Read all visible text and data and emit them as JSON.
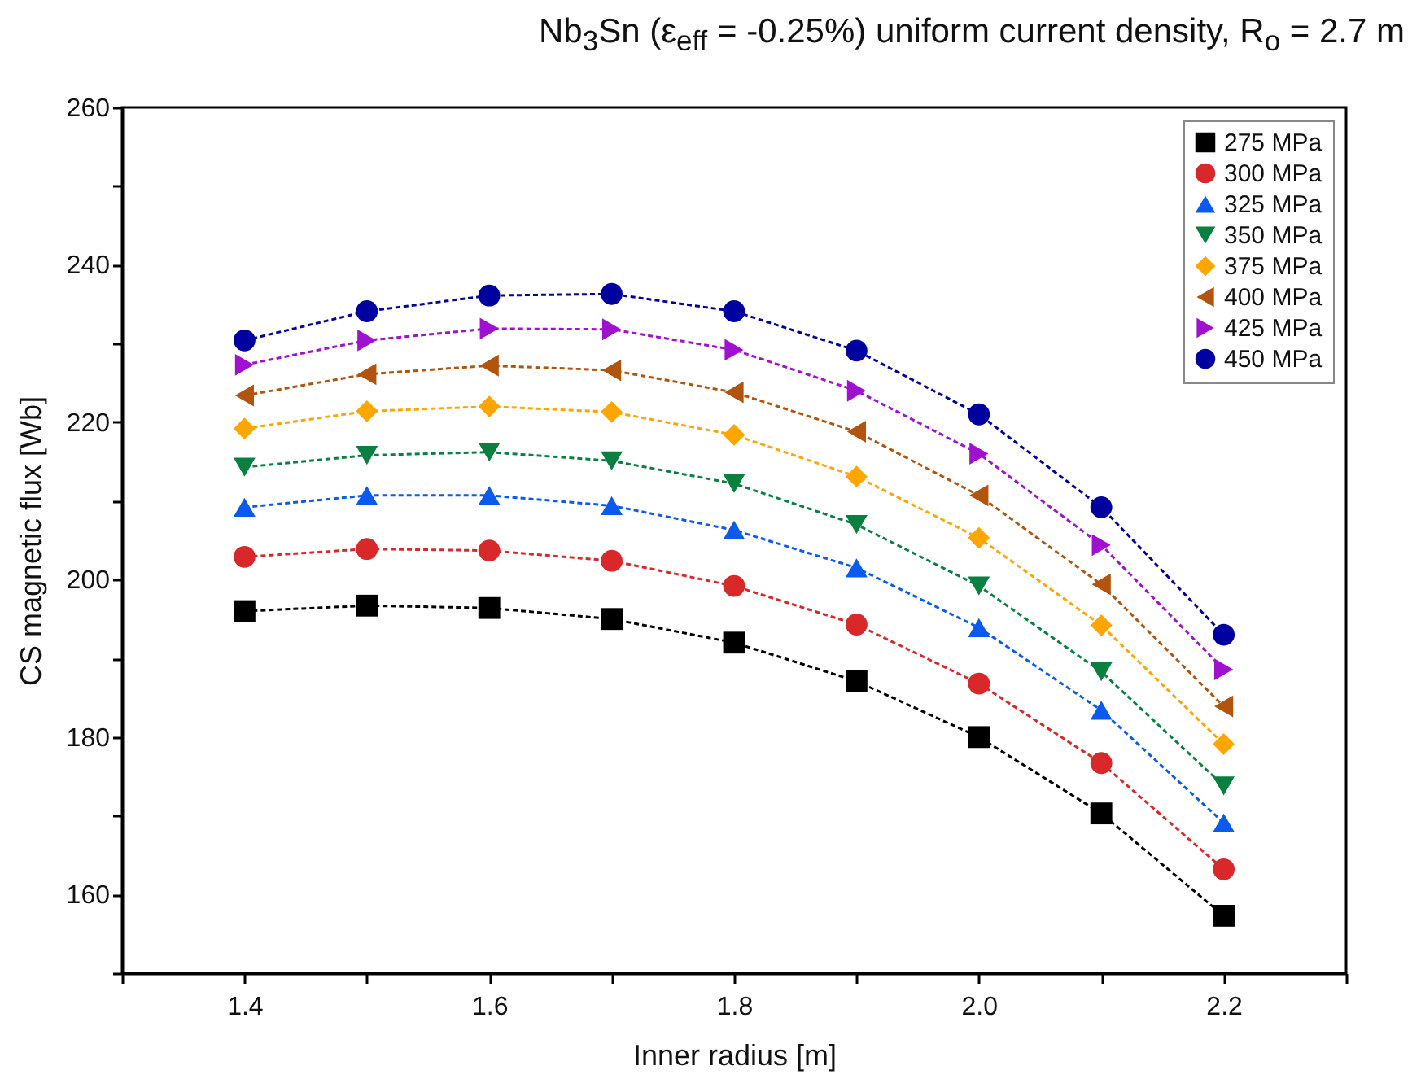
{
  "chart_data": {
    "type": "line",
    "title": "Nb$_{3}$Sn (ε$_{eff}$ = -0.25%) uniform current density, R$_{o}$ = 2.7 m",
    "xlabel": "Inner radius [m]",
    "ylabel": "CS magnetic flux [Wb]",
    "x": [
      1.4,
      1.5,
      1.6,
      1.7,
      1.8,
      1.9,
      2.0,
      2.1,
      2.2
    ],
    "series": [
      {
        "name": "275 MPa",
        "color": "#000000",
        "marker": "square",
        "values": [
          196.0,
          196.7,
          196.4,
          195.0,
          192.0,
          187.1,
          180.0,
          170.3,
          157.3
        ]
      },
      {
        "name": "300 MPa",
        "color": "#d8282a",
        "marker": "circle",
        "values": [
          202.9,
          203.9,
          203.7,
          202.4,
          199.2,
          194.3,
          186.8,
          176.7,
          163.2
        ]
      },
      {
        "name": "325 MPa",
        "color": "#0a5af0",
        "marker": "triangle-up",
        "values": [
          209.2,
          210.7,
          210.7,
          209.4,
          206.3,
          201.5,
          193.9,
          183.4,
          169.1
        ]
      },
      {
        "name": "350 MPa",
        "color": "#0a8040",
        "marker": "triangle-down",
        "values": [
          214.3,
          215.8,
          216.2,
          215.1,
          212.2,
          207.0,
          199.2,
          188.3,
          173.8
        ]
      },
      {
        "name": "375 MPa",
        "color": "#ffa500",
        "marker": "diamond",
        "values": [
          219.2,
          221.4,
          222.0,
          221.3,
          218.4,
          213.1,
          205.3,
          194.2,
          179.1
        ]
      },
      {
        "name": "400 MPa",
        "color": "#b0540e",
        "marker": "triangle-left",
        "values": [
          223.4,
          226.1,
          227.2,
          226.6,
          223.8,
          218.8,
          210.7,
          199.4,
          183.9
        ]
      },
      {
        "name": "425 MPa",
        "color": "#a010d0",
        "marker": "triangle-right",
        "values": [
          227.3,
          230.4,
          231.9,
          231.8,
          229.2,
          224.0,
          216.0,
          204.4,
          188.6
        ]
      },
      {
        "name": "450 MPa",
        "color": "#0000a0",
        "marker": "circle",
        "values": [
          230.4,
          234.1,
          236.1,
          236.3,
          234.1,
          229.1,
          221.0,
          209.2,
          193.0
        ]
      }
    ],
    "xlim": [
      1.3,
      2.3
    ],
    "xticks": [
      {
        "value": 1.3,
        "label": null
      },
      1.4,
      {
        "value": 1.5,
        "label": null
      },
      1.6,
      {
        "value": 1.7,
        "label": null
      },
      1.8,
      {
        "value": 1.9,
        "label": null
      },
      {
        "value": 2,
        "label": "2.0"
      },
      {
        "value": 2.1,
        "label": null
      },
      2.2,
      {
        "value": 2.3,
        "label": null
      }
    ],
    "ylim": [
      150,
      260
    ],
    "yticks": [
      {
        "value": 150,
        "label": null
      },
      160,
      {
        "value": 170,
        "label": null
      },
      180,
      {
        "value": 190,
        "label": null
      },
      200,
      {
        "value": 210,
        "label": null
      },
      220,
      {
        "value": 230,
        "label": null
      },
      240,
      {
        "value": 250,
        "label": null
      },
      260
    ],
    "grid": false,
    "legend": "top right",
    "line_style": "dashed"
  }
}
